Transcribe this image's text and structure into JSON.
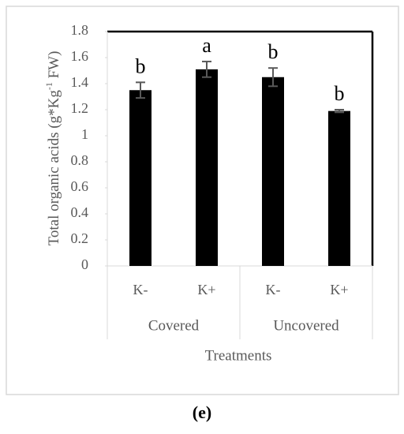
{
  "chart_data": {
    "type": "bar",
    "ylabel": [
      "Total organic acids (g*Kg",
      "-1",
      " FW)"
    ],
    "xlabel": "Treatments",
    "categories": [
      "K-",
      "K+",
      "K-",
      "K+"
    ],
    "group_labels": [
      "Covered",
      "Uncovered"
    ],
    "values": [
      1.35,
      1.51,
      1.45,
      1.19
    ],
    "errors": [
      0.06,
      0.06,
      0.07,
      0.01
    ],
    "annotations": [
      "b",
      "a",
      "b",
      "b"
    ],
    "color": "#000000",
    "ylim": [
      0,
      1.8
    ],
    "yticks": [
      0,
      0.2,
      0.4,
      0.6,
      0.8,
      1,
      1.2,
      1.4,
      1.6,
      1.8
    ],
    "caption": "(e)"
  }
}
